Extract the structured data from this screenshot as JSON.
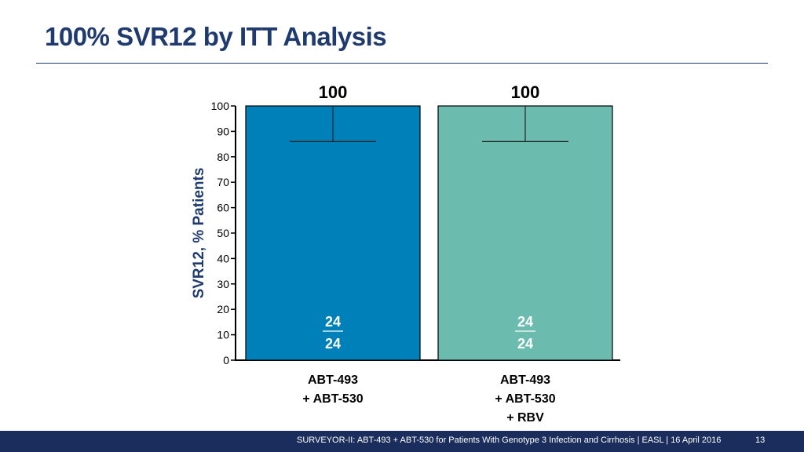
{
  "header": {
    "title": "100% SVR12 by ITT Analysis"
  },
  "footer": {
    "text": "SURVEYOR-II: ABT-493 + ABT-530 for Patients With Genotype 3 Infection and Cirrhosis  | EASL | 16 April 2016",
    "page": "13"
  },
  "chart_data": {
    "type": "bar",
    "categories": [
      [
        "ABT-493",
        "+ ABT-530"
      ],
      [
        "ABT-493",
        "+ ABT-530",
        "+ RBV"
      ]
    ],
    "values": [
      100,
      100
    ],
    "value_labels": [
      "100",
      "100"
    ],
    "fractions": [
      {
        "numerator": "24",
        "denominator": "24"
      },
      {
        "numerator": "24",
        "denominator": "24"
      }
    ],
    "error_lower": [
      86,
      86
    ],
    "colors": [
      "#0080b9",
      "#6bbcae"
    ],
    "ylabel": "SVR12, % Patients",
    "ylim": [
      0,
      100
    ],
    "yticks": [
      0,
      10,
      20,
      30,
      40,
      50,
      60,
      70,
      80,
      90,
      100
    ],
    "grid": false
  }
}
